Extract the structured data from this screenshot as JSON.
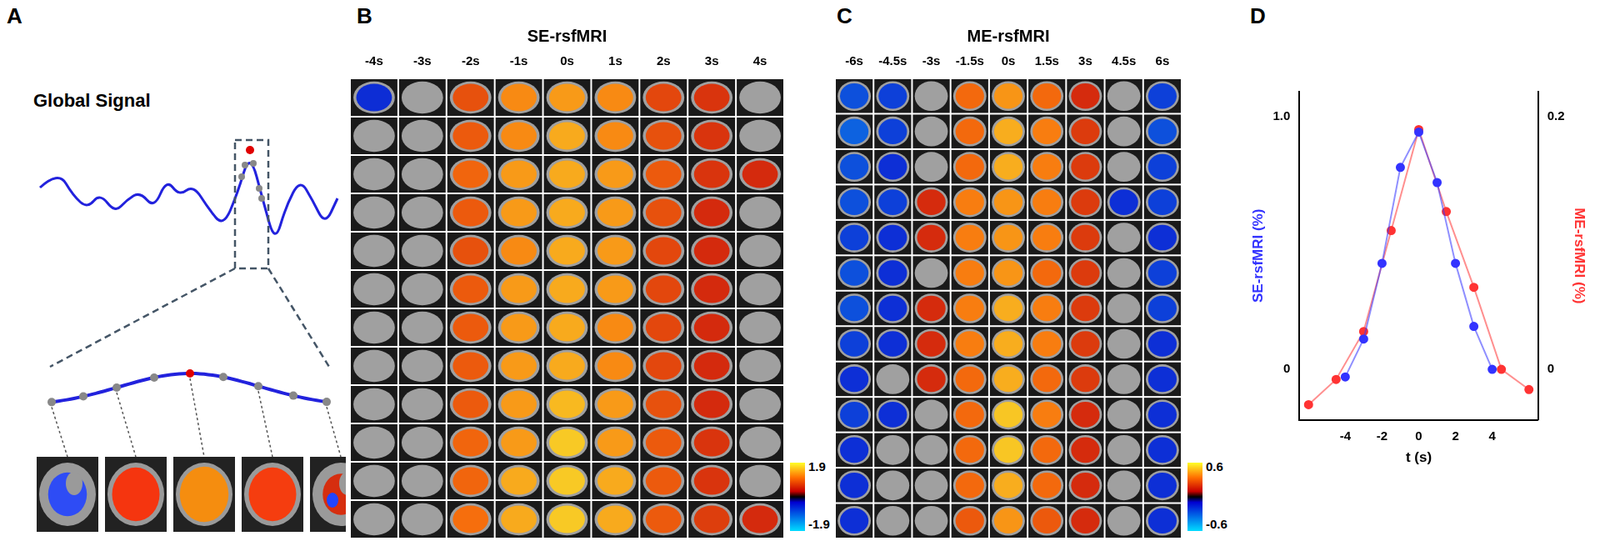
{
  "panel_labels": [
    "A",
    "B",
    "C",
    "D"
  ],
  "panel_a": {
    "title": "Global Signal"
  },
  "panel_b": {
    "title": "SE-rsfMRI",
    "times": [
      "-4s",
      "-3s",
      "-2s",
      "-1s",
      "0s",
      "1s",
      "2s",
      "3s",
      "4s"
    ],
    "cells": [
      [
        -0.3,
        -0.2,
        0.7,
        1.2,
        1.3,
        1.2,
        0.6,
        0.4,
        0.2
      ],
      [
        -0.2,
        0.0,
        0.8,
        1.2,
        1.4,
        1.2,
        0.7,
        0.4,
        0.2
      ],
      [
        0.0,
        0.0,
        0.9,
        1.3,
        1.4,
        1.3,
        0.8,
        0.4,
        0.3
      ],
      [
        -0.1,
        0.0,
        0.8,
        1.3,
        1.4,
        1.3,
        0.7,
        0.3,
        0.2
      ],
      [
        0.0,
        0.0,
        0.7,
        1.2,
        1.4,
        1.3,
        0.6,
        0.3,
        0.2
      ],
      [
        0.0,
        0.0,
        0.8,
        1.3,
        1.4,
        1.3,
        0.6,
        0.3,
        0.1
      ],
      [
        0.0,
        0.0,
        0.8,
        1.3,
        1.4,
        1.2,
        0.6,
        0.3,
        0.1
      ],
      [
        0.0,
        0.0,
        0.8,
        1.3,
        1.4,
        1.2,
        0.6,
        0.3,
        0.2
      ],
      [
        0.0,
        0.0,
        0.8,
        1.3,
        1.5,
        1.3,
        0.7,
        0.3,
        0.1
      ],
      [
        0.0,
        0.0,
        0.9,
        1.3,
        1.6,
        1.3,
        0.8,
        0.4,
        0.2
      ],
      [
        0.0,
        0.0,
        0.9,
        1.4,
        1.6,
        1.4,
        0.8,
        0.4,
        0.2
      ],
      [
        0.0,
        0.0,
        1.0,
        1.4,
        1.6,
        1.4,
        0.8,
        0.5,
        0.3
      ]
    ],
    "colorbar": {
      "range": [
        -1.9,
        1.9
      ],
      "ticks": [
        -1.9,
        1.9
      ]
    }
  },
  "panel_c": {
    "title": "ME-rsfMRI",
    "times": [
      "-6s",
      "-4.5s",
      "-3s",
      "-1.5s",
      "0s",
      "1.5s",
      "3s",
      "4.5s",
      "6s"
    ],
    "cells": [
      [
        -0.2,
        -0.15,
        0.05,
        0.3,
        0.4,
        0.3,
        0.1,
        -0.05,
        -0.15
      ],
      [
        -0.25,
        -0.15,
        0.05,
        0.3,
        0.45,
        0.35,
        0.15,
        -0.05,
        -0.2
      ],
      [
        -0.2,
        -0.1,
        0.05,
        0.3,
        0.45,
        0.35,
        0.15,
        -0.05,
        -0.15
      ],
      [
        -0.2,
        -0.15,
        0.1,
        0.35,
        0.4,
        0.35,
        0.15,
        -0.1,
        -0.15
      ],
      [
        -0.15,
        -0.1,
        0.1,
        0.35,
        0.4,
        0.35,
        0.15,
        -0.05,
        -0.1
      ],
      [
        -0.2,
        -0.1,
        0.05,
        0.35,
        0.4,
        0.3,
        0.15,
        -0.05,
        -0.15
      ],
      [
        -0.2,
        -0.1,
        0.1,
        0.35,
        0.45,
        0.35,
        0.15,
        -0.05,
        -0.15
      ],
      [
        -0.15,
        -0.1,
        0.1,
        0.35,
        0.45,
        0.35,
        0.15,
        0.0,
        -0.1
      ],
      [
        -0.1,
        -0.05,
        0.1,
        0.3,
        0.45,
        0.3,
        0.15,
        0.0,
        -0.1
      ],
      [
        -0.15,
        -0.1,
        0.05,
        0.3,
        0.5,
        0.35,
        0.1,
        -0.05,
        -0.1
      ],
      [
        -0.1,
        -0.05,
        0.05,
        0.3,
        0.5,
        0.3,
        0.1,
        0.0,
        -0.1
      ],
      [
        -0.1,
        -0.05,
        0.05,
        0.3,
        0.45,
        0.3,
        0.1,
        0.0,
        -0.1
      ],
      [
        -0.1,
        -0.05,
        0.05,
        0.25,
        0.4,
        0.25,
        0.1,
        0.0,
        -0.1
      ]
    ],
    "colorbar": {
      "range": [
        -0.6,
        0.6
      ],
      "ticks": [
        -0.6,
        0.6
      ]
    }
  },
  "chart_data": {
    "type": "line",
    "x_label": "t (s)",
    "y_label": "SE-rsfMRI (%)",
    "y2_label": "ME-rsfMRI (%)",
    "xlim": [
      -6.5,
      6.5
    ],
    "xticks": [
      -4,
      -2,
      0,
      2,
      4
    ],
    "ylim": [
      -0.2,
      1.1
    ],
    "yticks": [
      0,
      {
        "value": 1,
        "label": "1.0"
      }
    ],
    "y2lim": [
      -0.04,
      0.22
    ],
    "y2ticks": [
      0,
      0.2
    ],
    "grid": false,
    "series": [
      {
        "color": "#3333ff",
        "x": [
          -4,
          -3,
          -2,
          -1,
          0,
          1,
          2,
          3,
          4
        ],
        "values": [
          -0.03,
          0.12,
          0.42,
          0.8,
          0.94,
          0.74,
          0.42,
          0.17,
          0.0
        ]
      },
      {
        "color": "#ff3333",
        "axis": "y2",
        "x": [
          -6,
          -4.5,
          -3,
          -1.5,
          0,
          1.5,
          3,
          4.5,
          6
        ],
        "values": [
          -0.028,
          -0.008,
          0.03,
          0.11,
          0.19,
          0.125,
          0.065,
          0.0,
          -0.016
        ]
      }
    ]
  }
}
